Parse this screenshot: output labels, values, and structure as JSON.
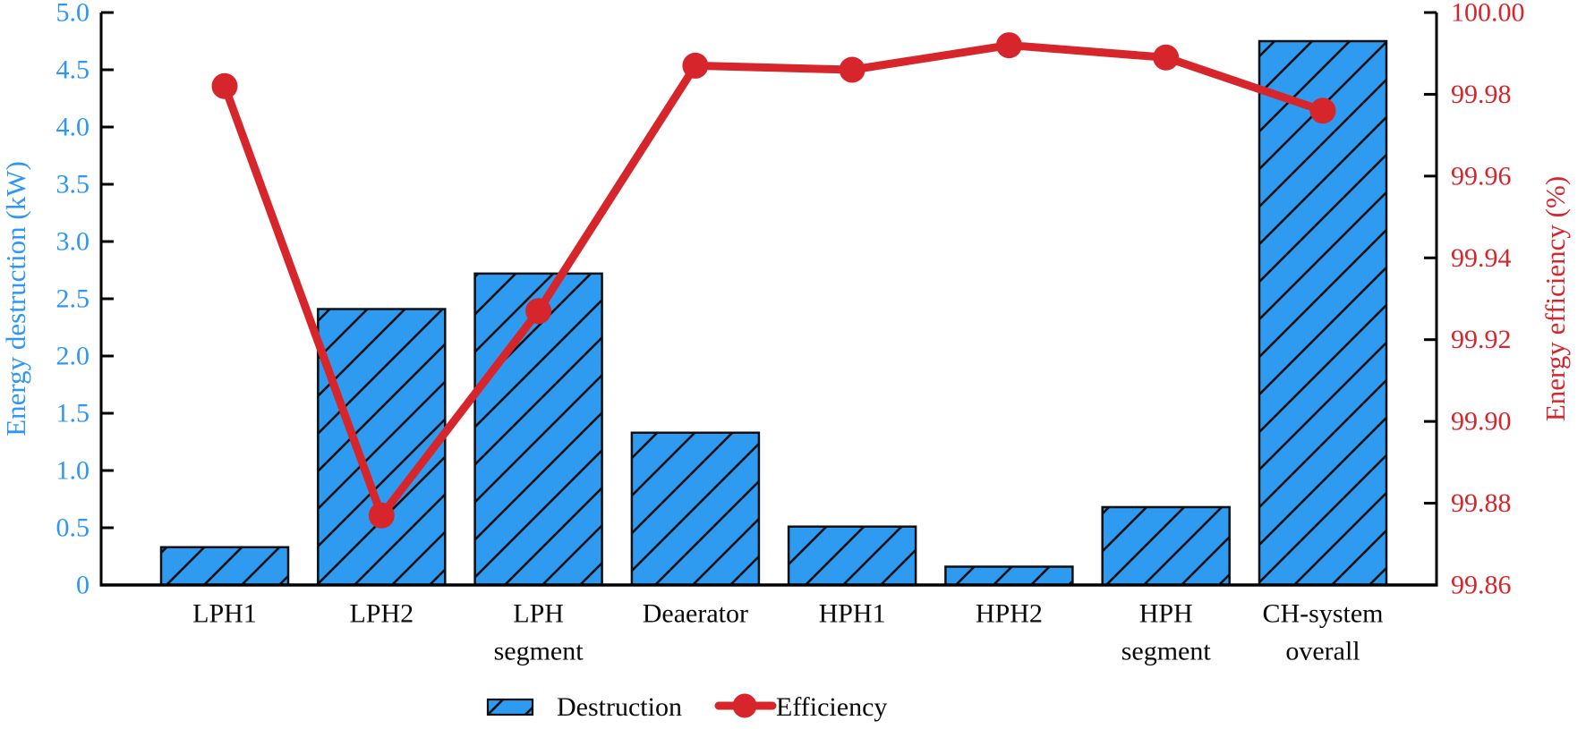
{
  "figure": {
    "background": "#ffffff",
    "colors": {
      "bar_fill": "#2E9BF0",
      "bar_edge": "#0c1014",
      "blue_text": "#2E96F5",
      "red": "#D7262B",
      "black_text": "#0a0a0a"
    },
    "legend": {
      "destruction_label": "Destruction",
      "efficiency_label": "Efficiency"
    }
  },
  "chart_data": {
    "type": "bar+line (dual y-axis)",
    "categories": [
      "LPH1",
      "LPH2",
      "LPH segment",
      "Deaerator",
      "HPH1",
      "HPH2",
      "HPH segment",
      "CH-system overall"
    ],
    "category_display_lines": [
      [
        "LPH1"
      ],
      [
        "LPH2"
      ],
      [
        "LPH",
        "segment"
      ],
      [
        "Deaerator"
      ],
      [
        "HPH1"
      ],
      [
        "HPH2"
      ],
      [
        "HPH",
        "segment"
      ],
      [
        "CH-system",
        "overall"
      ]
    ],
    "series": [
      {
        "name": "Destruction",
        "type": "bar",
        "axis": "left",
        "values": [
          0.33,
          2.41,
          2.72,
          1.33,
          0.51,
          0.16,
          0.68,
          4.75
        ]
      },
      {
        "name": "Efficiency",
        "type": "line",
        "axis": "right",
        "values": [
          99.982,
          99.877,
          99.927,
          99.987,
          99.986,
          99.992,
          99.989,
          99.976
        ]
      }
    ],
    "left_axis": {
      "label": "Energy destruction (kW)",
      "min": 0,
      "max": 5.0,
      "tick_step": 0.5,
      "tick_labels": [
        "5.0",
        "4.5",
        "4.0",
        "3.5",
        "3.0",
        "2.5",
        "2.0",
        "1.5",
        "1.0",
        "0.5",
        "0"
      ]
    },
    "right_axis": {
      "label": "Energy efficiency (%)",
      "min": 99.86,
      "max": 100.0,
      "tick_step": 0.02,
      "tick_labels": [
        "100.00",
        "99.98",
        "99.96",
        "99.94",
        "99.92",
        "99.90",
        "99.88",
        "99.86"
      ]
    },
    "grid": false,
    "legend_position": "bottom-center",
    "hatch": "/"
  }
}
